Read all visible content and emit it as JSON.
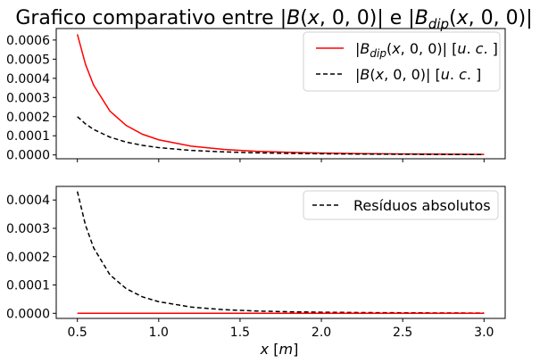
{
  "chart_data": [
    {
      "type": "line",
      "title": "Grafico comparativo entre |B(x,0,0)| e |B_dip(x,0,0)|",
      "xlabel": "",
      "ylabel": "",
      "xlim": [
        0.37,
        3.13
      ],
      "ylim": [
        -2e-05,
        0.00066
      ],
      "yticks": [
        "0.0000",
        "0.0001",
        "0.0002",
        "0.0003",
        "0.0004",
        "0.0005",
        "0.0006"
      ],
      "grid": false,
      "legend": "top-right",
      "series": [
        {
          "name": "|B_dip(x,0,0)| [u.c.]",
          "color": "#ff0000",
          "style": "solid",
          "x": [
            0.5,
            0.55,
            0.6,
            0.7,
            0.8,
            0.9,
            1.0,
            1.2,
            1.4,
            1.6,
            1.8,
            2.0,
            2.25,
            2.5,
            2.75,
            3.0
          ],
          "y": [
            0.00063,
            0.000473,
            0.000364,
            0.000229,
            0.000154,
            0.000108,
            7.9e-05,
            4.56e-05,
            2.87e-05,
            1.92e-05,
            1.35e-05,
            9.9e-06,
            6.9e-06,
            5.1e-06,
            3.8e-06,
            2.9e-06
          ]
        },
        {
          "name": "|B(x,0,0)| [u.c.]",
          "color": "#000000",
          "style": "dashed",
          "x": [
            0.5,
            0.55,
            0.6,
            0.7,
            0.8,
            0.9,
            1.0,
            1.2,
            1.4,
            1.6,
            1.8,
            2.0,
            2.25,
            2.5,
            2.75,
            3.0
          ],
          "y": [
            0.0002,
            0.000162,
            0.000133,
            9.3e-05,
            6.7e-05,
            5e-05,
            3.8e-05,
            2.36e-05,
            1.58e-05,
            1.11e-05,
            8.1e-06,
            6.1e-06,
            4.4e-06,
            3.3e-06,
            2.5e-06,
            2e-06
          ]
        }
      ]
    },
    {
      "type": "line",
      "title": "",
      "xlabel": "x [m]",
      "ylabel": "",
      "xlim": [
        0.37,
        3.13
      ],
      "ylim": [
        -1.8e-05,
        0.000448
      ],
      "xticks": [
        "0.5",
        "1.0",
        "1.5",
        "2.0",
        "2.5",
        "3.0"
      ],
      "yticks": [
        "0.0000",
        "0.0001",
        "0.0002",
        "0.0003",
        "0.0004"
      ],
      "grid": false,
      "legend": "top-right",
      "series": [
        {
          "name": "Resíduos absolutos",
          "color": "#000000",
          "style": "dashed",
          "x": [
            0.5,
            0.55,
            0.6,
            0.7,
            0.8,
            0.9,
            1.0,
            1.2,
            1.4,
            1.6,
            1.8,
            2.0,
            2.25,
            2.5,
            2.75,
            3.0
          ],
          "y": [
            0.00043,
            0.000311,
            0.000231,
            0.000136,
            8.7e-05,
            5.8e-05,
            4.1e-05,
            2.2e-05,
            1.29e-05,
            8.1e-06,
            5.4e-06,
            3.8e-06,
            2.5e-06,
            1.8e-06,
            1.3e-06,
            9e-07
          ]
        },
        {
          "name": "",
          "color": "#ff0000",
          "style": "solid",
          "x": [
            0.5,
            3.0
          ],
          "y": [
            0.0,
            0.0
          ]
        }
      ]
    }
  ]
}
